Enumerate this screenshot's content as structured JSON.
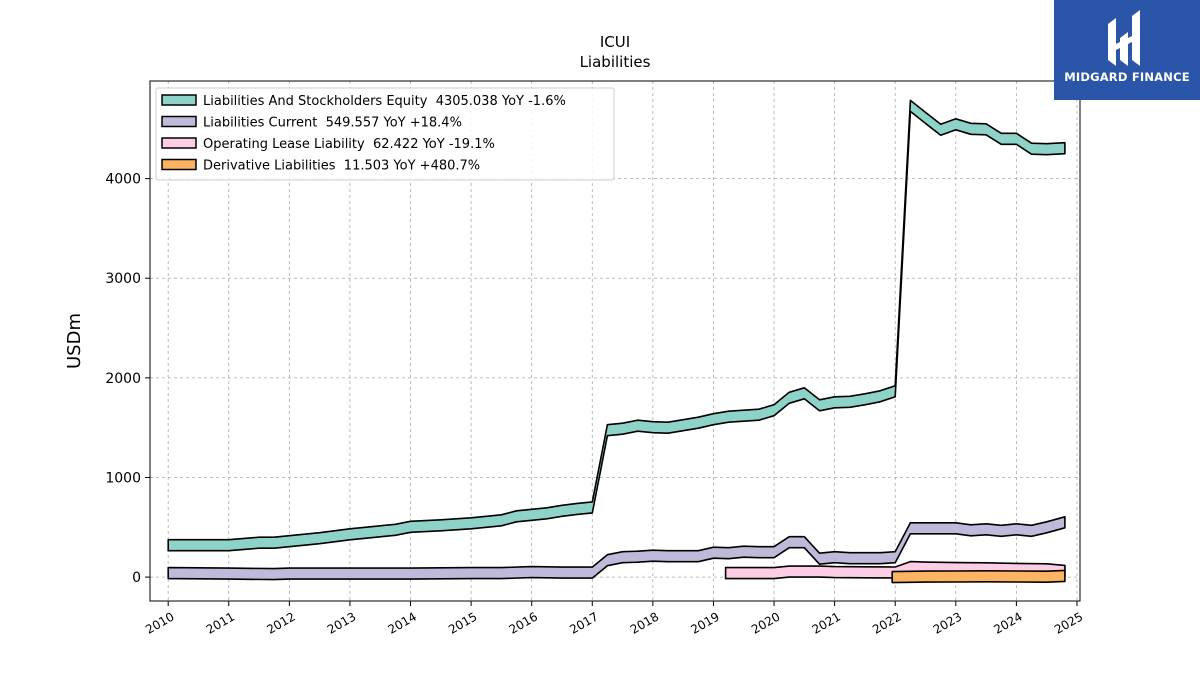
{
  "header": {
    "ticker": "ICUI",
    "subtitle": "Liabilities"
  },
  "logo": {
    "text": "MIDGARD FINANCE",
    "icon": "midgard-logo-icon"
  },
  "chart_data": {
    "type": "area",
    "ylabel": "USDm",
    "ylim": [
      -240,
      4980
    ],
    "xlim": [
      2009.7,
      2025.05
    ],
    "yticks": [
      0,
      1000,
      2000,
      3000,
      4000
    ],
    "xticks": [
      "2010",
      "2011",
      "2012",
      "2013",
      "2014",
      "2015",
      "2016",
      "2017",
      "2018",
      "2019",
      "2020",
      "2021",
      "2022",
      "2023",
      "2024",
      "2025"
    ],
    "grid": true,
    "legend_position": "top-left",
    "series": [
      {
        "name": "Liabilities And Stockholders Equity",
        "legend_label": "Liabilities And Stockholders Equity  4305.038 YoY -1.6%",
        "color": "#8dd3c7",
        "x": [
          2010.0,
          2011.0,
          2011.5,
          2011.75,
          2012.0,
          2012.5,
          2013.0,
          2013.5,
          2013.75,
          2014.0,
          2014.5,
          2015.0,
          2015.5,
          2015.75,
          2016.0,
          2016.25,
          2016.5,
          2016.75,
          2017.0,
          2017.25,
          2017.5,
          2017.75,
          2018.0,
          2018.25,
          2018.5,
          2018.75,
          2019.0,
          2019.25,
          2019.5,
          2019.75,
          2020.0,
          2020.25,
          2020.5,
          2020.75,
          2021.0,
          2021.25,
          2021.5,
          2021.75,
          2022.0,
          2022.25,
          2022.5,
          2022.75,
          2023.0,
          2023.25,
          2023.5,
          2023.75,
          2024.0,
          2024.25,
          2024.5,
          2024.8
        ],
        "y": [
          320,
          320,
          345,
          345,
          360,
          390,
          430,
          460,
          475,
          505,
          520,
          540,
          570,
          610,
          625,
          640,
          665,
          685,
          700,
          1475,
          1490,
          1520,
          1505,
          1500,
          1525,
          1550,
          1585,
          1610,
          1620,
          1630,
          1675,
          1800,
          1845,
          1725,
          1755,
          1760,
          1785,
          1815,
          1865,
          4730,
          4610,
          4490,
          4545,
          4500,
          4495,
          4400,
          4400,
          4300,
          4295,
          4305
        ]
      },
      {
        "name": "Liabilities Current",
        "legend_label": "Liabilities Current  549.557 YoY +18.4%",
        "color": "#bebada",
        "x": [
          2010.0,
          2011.0,
          2011.75,
          2012.0,
          2012.5,
          2013.0,
          2014.0,
          2015.0,
          2015.5,
          2016.0,
          2016.5,
          2016.75,
          2017.0,
          2017.25,
          2017.5,
          2017.75,
          2018.0,
          2018.25,
          2018.5,
          2018.75,
          2019.0,
          2019.25,
          2019.5,
          2019.75,
          2020.0,
          2020.25,
          2020.5,
          2020.75,
          2021.0,
          2021.25,
          2021.5,
          2021.75,
          2022.0,
          2022.25,
          2022.5,
          2022.75,
          2023.0,
          2023.25,
          2023.5,
          2023.75,
          2024.0,
          2024.25,
          2024.5,
          2024.8
        ],
        "y": [
          40,
          35,
          30,
          35,
          35,
          35,
          35,
          40,
          40,
          50,
          45,
          45,
          45,
          170,
          200,
          205,
          215,
          210,
          210,
          210,
          245,
          240,
          255,
          250,
          250,
          350,
          350,
          185,
          200,
          190,
          190,
          190,
          200,
          490,
          490,
          490,
          490,
          470,
          480,
          465,
          480,
          465,
          500,
          550
        ]
      },
      {
        "name": "Operating Lease Liability",
        "legend_label": "Operating Lease Liability  62.422 YoY -19.1%",
        "color": "#fccde5",
        "x": [
          2019.2,
          2020.0,
          2020.25,
          2020.5,
          2020.75,
          2021.0,
          2021.5,
          2022.0,
          2022.25,
          2022.5,
          2023.0,
          2023.5,
          2024.0,
          2024.5,
          2024.8
        ],
        "y": [
          40,
          40,
          55,
          55,
          55,
          50,
          48,
          46,
          100,
          95,
          90,
          88,
          82,
          78,
          62
        ]
      },
      {
        "name": "Derivative Liabilities",
        "legend_label": "Derivative Liabilities  11.503 YoY +480.7%",
        "color": "#fdb462",
        "x": [
          2021.95,
          2022.25,
          2022.5,
          2023.0,
          2023.5,
          2024.0,
          2024.5,
          2024.8
        ],
        "y": [
          0,
          3,
          5,
          6,
          8,
          6,
          4,
          11.5
        ]
      }
    ]
  }
}
